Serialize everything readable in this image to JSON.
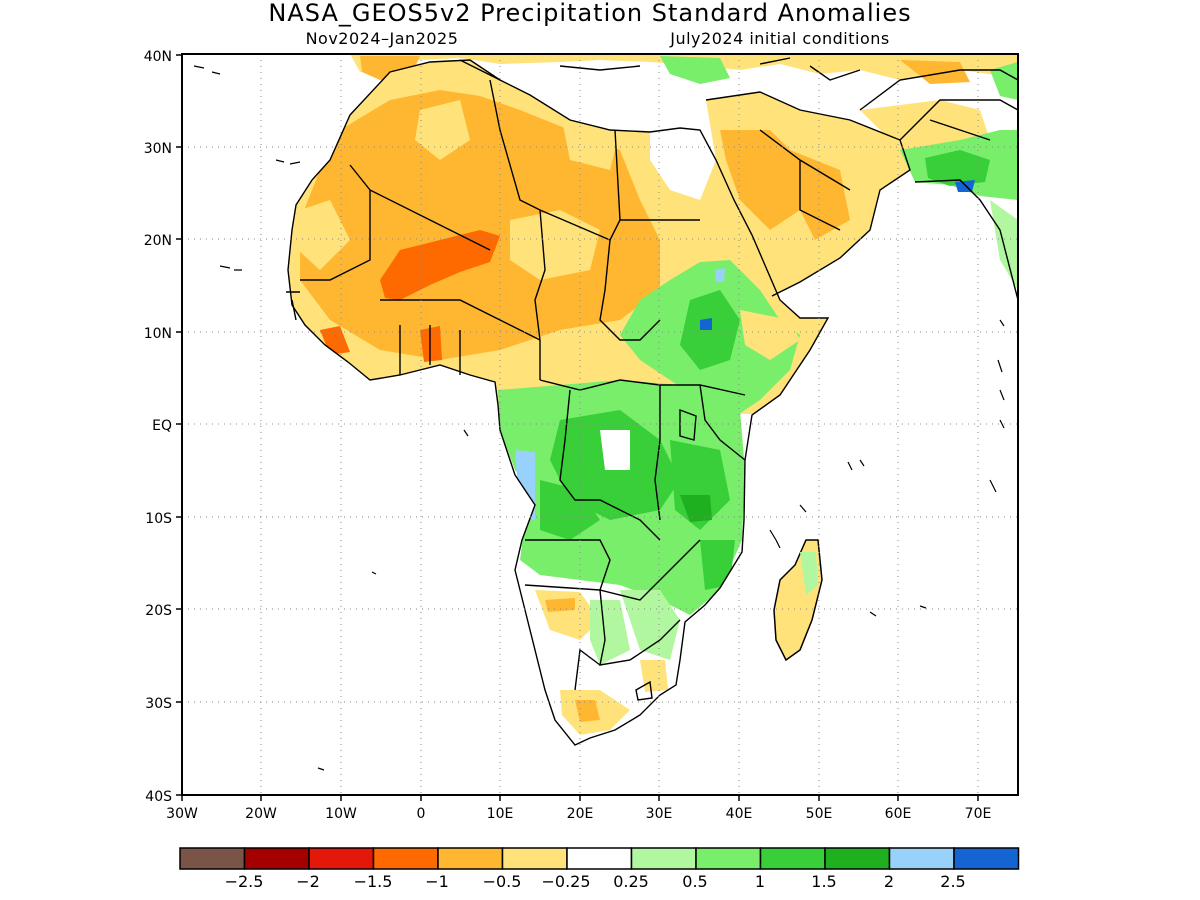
{
  "title": "NASA_GEOS5v2 Precipitation Standard Anomalies",
  "period_label": "Nov2024–Jan2025",
  "init_label": "July2024 initial conditions",
  "map": {
    "region": "Africa",
    "lat_range": [
      "40S",
      "40N"
    ],
    "lon_range": [
      "30W",
      "75E"
    ],
    "y_ticks": [
      "40N",
      "30N",
      "20N",
      "10N",
      "EQ",
      "10S",
      "20S",
      "30S",
      "40S"
    ],
    "x_ticks": [
      "30W",
      "20W",
      "10W",
      "0",
      "10E",
      "20E",
      "30E",
      "40E",
      "50E",
      "60E",
      "70E"
    ],
    "grid": "dotted"
  },
  "colorbar": {
    "colors": [
      "#7a5447",
      "#a50000",
      "#e3170a",
      "#ff6a00",
      "#ffb732",
      "#ffe37a",
      "#ffffff",
      "#b0f7a0",
      "#78ee6a",
      "#38cf38",
      "#1eb01e",
      "#98d2fa",
      "#1464d2"
    ],
    "labels": [
      "−2.5",
      "−2",
      "−1.5",
      "−1",
      "−0.5",
      "−0.25",
      "0.25",
      "0.5",
      "1",
      "1.5",
      "2",
      "2.5"
    ]
  }
}
